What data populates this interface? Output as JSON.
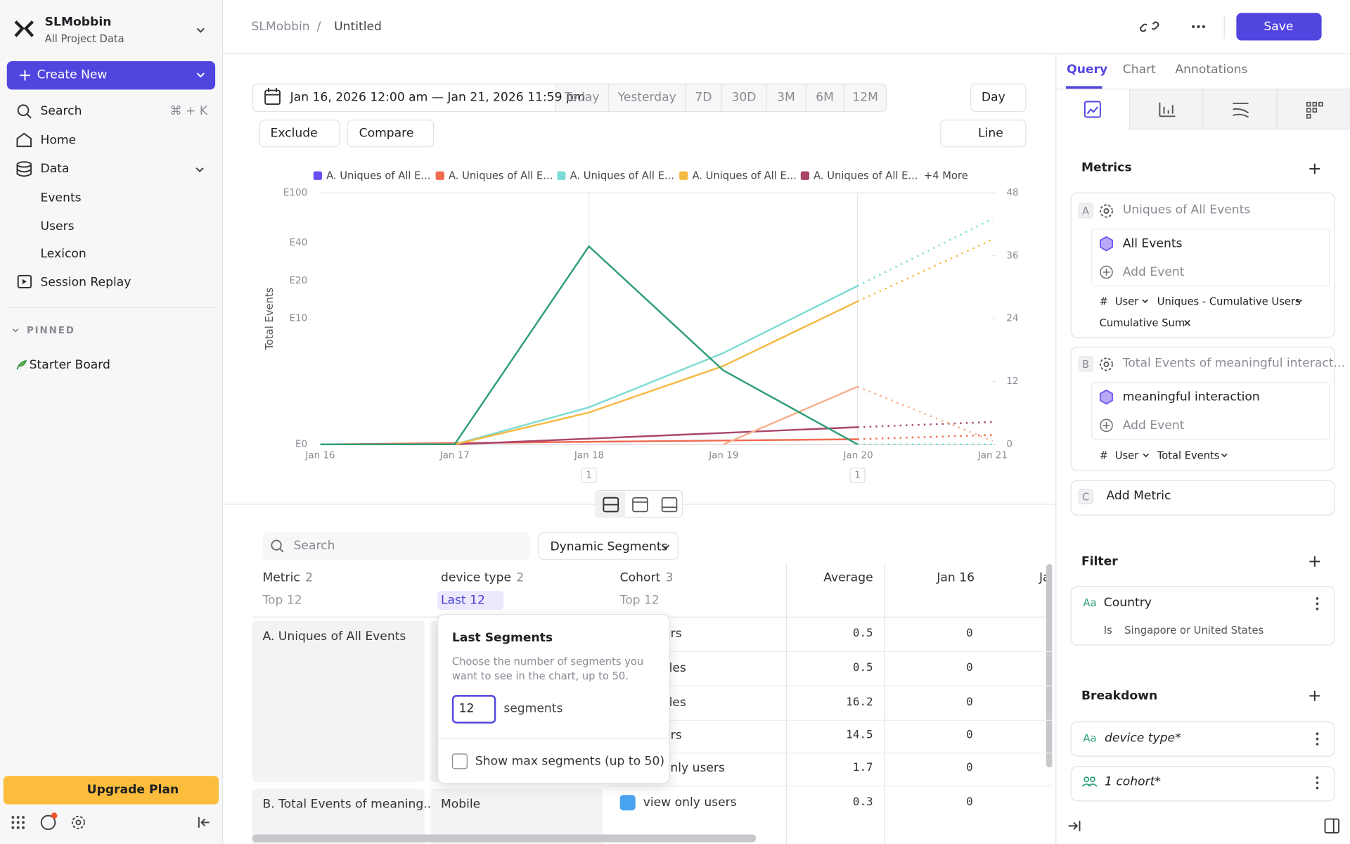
{
  "sidebar": {
    "org": "SLMobbin",
    "project": "All Project Data",
    "create": "Create New",
    "search": "Search",
    "shortcut": "⌘ + K",
    "home": "Home",
    "data": "Data",
    "data_items": [
      "Events",
      "Users",
      "Lexicon"
    ],
    "session": "Session Replay",
    "pinned": "PINNED",
    "starter": "Starter Board",
    "upgrade": "Upgrade Plan"
  },
  "header": {
    "breadcrumb": [
      "SLMobbin",
      "Untitled"
    ],
    "separator": "/",
    "save": "Save"
  },
  "toolbar": {
    "date_range": "Jan 16, 2026 12:00 am — Jan 21, 2026 11:59 pm",
    "ranges": [
      "Today",
      "Yesterday",
      "7D",
      "30D",
      "3M",
      "6M",
      "12M"
    ],
    "interval": "Day",
    "exclude": "Exclude",
    "compare": "Compare",
    "chart_type": "Line"
  },
  "chart": {
    "legend": [
      {
        "name": "A. Uniques of All E...",
        "color": "#6b4ef0"
      },
      {
        "name": "A. Uniques of All E...",
        "color": "#f06b4e"
      },
      {
        "name": "A. Uniques of All E...",
        "color": "#7ddbd5"
      },
      {
        "name": "A. Uniques of All E...",
        "color": "#f5b942"
      },
      {
        "name": "A. Uniques of All E...",
        "color": "#a9466a"
      }
    ],
    "more": "+4 More",
    "y_label": "Total Events",
    "yticks": [
      "E100",
      "E40",
      "E20",
      "E10",
      "E0"
    ],
    "y2lim": [
      0,
      48
    ],
    "y2ticks": [
      48,
      36,
      24,
      12,
      0
    ],
    "xticks": [
      "Jan 16",
      "Jan 17",
      "Jan 18",
      "Jan 19",
      "Jan 20",
      "Jan 21"
    ],
    "annotations": [
      "1",
      "1"
    ]
  },
  "table": {
    "search": "Search",
    "segments": "Dynamic Segments",
    "columns": [
      {
        "name": "Metric",
        "count": "2",
        "limit": "Top 12"
      },
      {
        "name": "device type",
        "count": "2",
        "limit": "Last 12"
      },
      {
        "name": "Cohort",
        "count": "3",
        "limit": "Top 12"
      }
    ],
    "value_columns": [
      "Average",
      "Jan 16",
      "Ja"
    ],
    "metrics": [
      "A. Uniques of All Events",
      "B. Total Events of meaning..."
    ],
    "device": "Mobile",
    "rows": [
      {
        "cohort": "only users",
        "average": "0.5",
        "jan16": "0"
      },
      {
        "cohort": "ser Profiles",
        "average": "0.5",
        "jan16": "0"
      },
      {
        "cohort": "ser Profiles",
        "average": "16.2",
        "jan16": "0"
      },
      {
        "cohort": "only users",
        "average": "14.5",
        "jan16": "0"
      },
      {
        "cohort": "n view only users",
        "average": "1.7",
        "jan16": "0"
      },
      {
        "cohort": "view only users",
        "average": "0.3",
        "jan16": "0"
      }
    ]
  },
  "popover": {
    "title": "Last Segments",
    "description": "Choose the number of segments you want to see in the chart, up to 50.",
    "input": "12",
    "unit": "segments",
    "checkbox": "Show max segments (up to 50)"
  },
  "panel": {
    "tabs": [
      "Query",
      "Chart",
      "Annotations"
    ],
    "metrics_title": "Metrics",
    "hash": "#",
    "text_icon": "Aa",
    "metric_a": {
      "letter": "A",
      "name": "Uniques of All Events",
      "event": "All Events",
      "add_event": "Add Event",
      "prop": "User",
      "measure": "Uniques - Cumulative Users",
      "tag": "Cumulative Sum"
    },
    "metric_b": {
      "letter": "B",
      "name": "Total Events of meaningful interact...",
      "event": "meaningful interaction",
      "add_event": "Add Event",
      "prop": "User",
      "measure": "Total Events"
    },
    "add_metric": {
      "letter": "C",
      "label": "Add Metric"
    },
    "filter_title": "Filter",
    "filter": {
      "name": "Country",
      "op": "Is",
      "value": "Singapore or United States"
    },
    "breakdown_title": "Breakdown",
    "breakdowns": [
      "device type*",
      "1 cohort*"
    ]
  }
}
